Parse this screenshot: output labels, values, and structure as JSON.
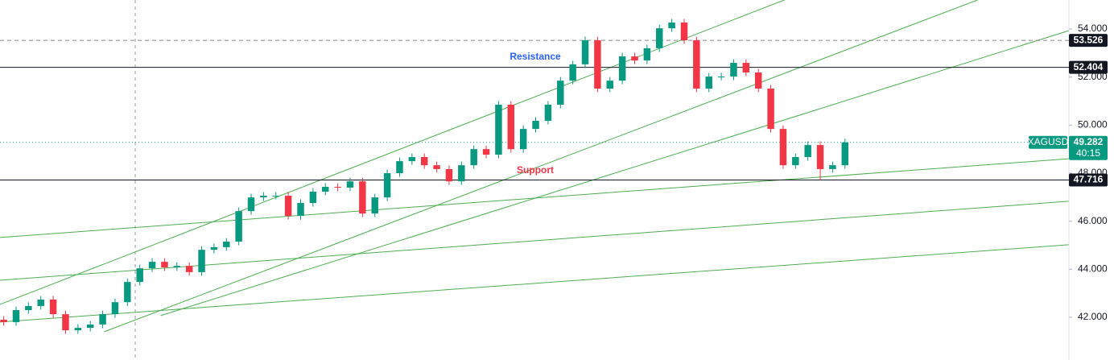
{
  "chart_data": {
    "type": "candlestick",
    "symbol": "XAGUSD",
    "countdown": "40:15",
    "annotations": [
      {
        "text": "Resistance",
        "color": "#2962ff"
      },
      {
        "text": "Support",
        "color": "#f23645"
      }
    ],
    "up_color": "#089981",
    "down_color": "#f23645",
    "trendline_color": "#4caf50",
    "grid": false,
    "xlim": [
      -0.3,
      86.1
    ],
    "ylim": [
      40.223,
      55.207
    ],
    "yticks": [
      {
        "value": 42,
        "label": "42.000"
      },
      {
        "value": 44,
        "label": "44.000"
      },
      {
        "value": 46,
        "label": "46.000"
      },
      {
        "value": 48,
        "label": "48.000"
      },
      {
        "value": 50,
        "label": "50.000"
      },
      {
        "value": 52,
        "label": "52.000"
      },
      {
        "value": 54,
        "label": "54.000"
      }
    ],
    "open": [
      41.9,
      41.8,
      42.3,
      42.47,
      42.74,
      42.13,
      41.46,
      41.56,
      41.7,
      42.13,
      42.63,
      43.47,
      44.04,
      44.31,
      44.08,
      44.14,
      43.88,
      44.81,
      44.92,
      45.15,
      46.42,
      46.99,
      47.06,
      47.06,
      46.22,
      46.76,
      47.23,
      47.43,
      47.4,
      47.66,
      46.32,
      46.99,
      48.0,
      48.5,
      48.67,
      48.33,
      48.17,
      47.66,
      48.33,
      49.0,
      48.77,
      50.85,
      49.0,
      49.84,
      50.18,
      50.85,
      51.85,
      52.53,
      53.53,
      51.52,
      51.85,
      52.86,
      52.69,
      53.2,
      54.03,
      54.27,
      53.53,
      51.52,
      52.02,
      52.02,
      52.59,
      52.19,
      51.52,
      49.84,
      48.33,
      48.67,
      49.17,
      48.17,
      48.33
    ],
    "high": [
      42.05,
      42.45,
      42.62,
      42.89,
      42.89,
      42.28,
      41.71,
      41.85,
      42.28,
      42.78,
      43.62,
      44.19,
      44.46,
      44.46,
      44.29,
      44.29,
      44.96,
      45.07,
      45.3,
      46.57,
      47.14,
      47.21,
      47.21,
      47.21,
      46.91,
      47.38,
      47.58,
      47.58,
      47.81,
      47.81,
      47.14,
      48.15,
      48.65,
      48.82,
      48.82,
      48.48,
      48.32,
      48.48,
      49.15,
      49.15,
      51.0,
      51.0,
      49.99,
      50.33,
      51.0,
      52.0,
      52.68,
      53.68,
      53.68,
      52.0,
      53.01,
      53.01,
      53.35,
      54.18,
      54.42,
      54.42,
      53.68,
      52.17,
      52.17,
      52.74,
      52.74,
      52.34,
      51.67,
      49.99,
      48.82,
      49.32,
      49.32,
      48.48,
      49.43
    ],
    "low": [
      41.65,
      41.65,
      42.15,
      42.32,
      41.98,
      41.31,
      41.31,
      41.41,
      41.55,
      41.98,
      42.48,
      43.32,
      43.89,
      43.93,
      43.93,
      43.73,
      43.73,
      44.66,
      44.77,
      45.0,
      46.27,
      46.84,
      46.91,
      46.07,
      46.07,
      46.61,
      47.08,
      47.25,
      47.25,
      46.17,
      46.17,
      46.84,
      47.85,
      48.35,
      48.18,
      48.02,
      47.51,
      47.51,
      48.18,
      48.62,
      48.62,
      48.85,
      48.85,
      49.69,
      50.03,
      50.7,
      51.7,
      52.38,
      51.37,
      51.37,
      51.7,
      52.54,
      52.54,
      53.05,
      53.88,
      53.38,
      51.37,
      51.37,
      51.87,
      51.87,
      52.04,
      51.37,
      49.69,
      48.18,
      48.18,
      48.52,
      47.72,
      48.02,
      48.18
    ],
    "close": [
      41.8,
      42.3,
      42.47,
      42.74,
      42.13,
      41.46,
      41.56,
      41.7,
      42.13,
      42.63,
      43.47,
      44.04,
      44.31,
      44.08,
      44.14,
      43.88,
      44.81,
      44.92,
      45.15,
      46.42,
      46.99,
      47.06,
      47.06,
      46.22,
      46.76,
      47.23,
      47.43,
      47.4,
      47.66,
      46.32,
      46.99,
      48.0,
      48.5,
      48.67,
      48.33,
      48.17,
      47.66,
      48.33,
      49.0,
      48.77,
      50.85,
      49.0,
      49.84,
      50.18,
      50.85,
      51.85,
      52.53,
      53.53,
      51.52,
      51.85,
      52.86,
      52.69,
      53.2,
      54.03,
      54.27,
      53.53,
      51.52,
      52.02,
      52.02,
      52.59,
      52.19,
      51.52,
      49.84,
      48.33,
      48.67,
      49.17,
      48.17,
      48.33,
      49.28
    ],
    "trendlines": [
      {
        "x": [
          -0.33,
          63.11
        ],
        "y": [
          42.53,
          55.21
        ]
      },
      {
        "x": [
          8.13,
          78.72
        ],
        "y": [
          41.4,
          55.21
        ]
      },
      {
        "x": [
          12.69,
          86.08
        ],
        "y": [
          42.07,
          53.93
        ]
      },
      {
        "x": [
          -0.33,
          86.08
        ],
        "y": [
          45.32,
          48.6
        ]
      },
      {
        "x": [
          -0.33,
          86.08
        ],
        "y": [
          43.54,
          46.83
        ]
      },
      {
        "x": [
          -0.33,
          86.08
        ],
        "y": [
          41.8,
          45.02
        ]
      }
    ],
    "price_lines": [
      {
        "value": 53.526,
        "style": "dashed",
        "color": "#888888",
        "tag_color": "#131722"
      },
      {
        "value": 52.404,
        "style": "solid",
        "color": "#131722",
        "tag_color": "#131722"
      },
      {
        "value": 49.282,
        "style": "dotted",
        "color": "#089981",
        "tag_color": "#089981"
      },
      {
        "value": 47.716,
        "style": "solid",
        "color": "#131722",
        "tag_color": "#131722"
      }
    ]
  }
}
